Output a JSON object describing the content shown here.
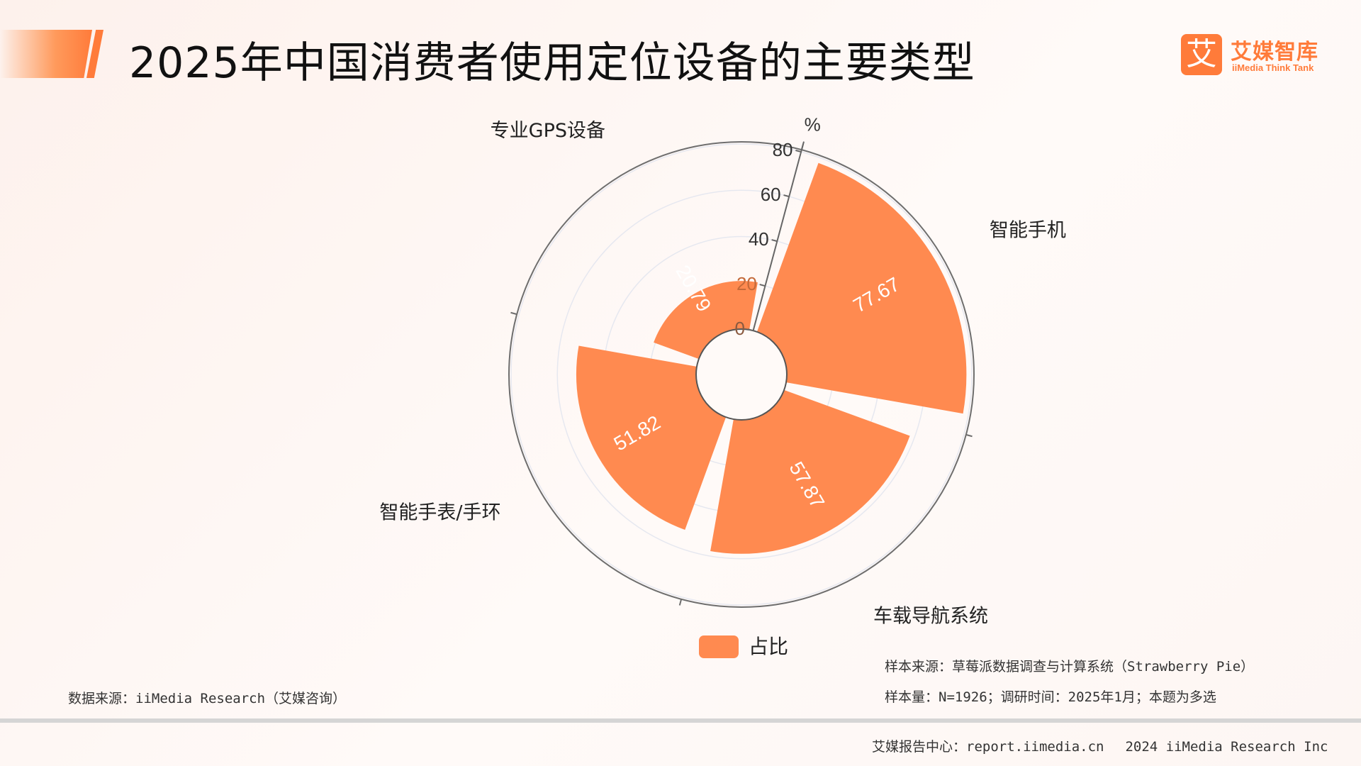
{
  "header": {
    "title": "2025年中国消费者使用定位设备的主要类型"
  },
  "logo": {
    "mark": "艾",
    "name_cn": "艾媒智库",
    "name_en": "iiMedia Think Tank"
  },
  "chart_data": {
    "type": "polar-bar",
    "unit": "%",
    "categories": [
      "智能手机",
      "车载导航系统",
      "智能手表/手环",
      "专业GPS设备"
    ],
    "series": [
      {
        "name": "占比",
        "values": [
          77.67,
          57.87,
          51.82,
          20.79
        ],
        "color": "#ff8a50"
      }
    ],
    "radial_ticks": [
      "0",
      "20",
      "40",
      "60",
      "80"
    ],
    "rlim": [
      0,
      80
    ],
    "legend_position": "bottom-center"
  },
  "notes": {
    "data_source": "数据来源：iiMedia Research（艾媒咨询）",
    "sample_source": "样本来源：草莓派数据调查与计算系统（Strawberry Pie）",
    "sample_size": "样本量：N=1926；调研时间：2025年1月；本题为多选"
  },
  "footer": {
    "report_center": "艾媒报告中心：report.iimedia.cn",
    "copyright": "2024 iiMedia Research Inc"
  }
}
